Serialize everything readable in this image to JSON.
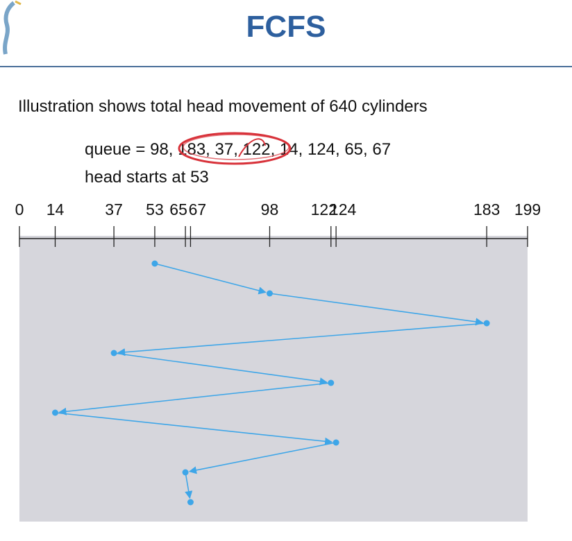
{
  "slide": {
    "title": "FCFS",
    "caption": "Illustration shows total head movement of 640 cylinders",
    "queue_label": "queue = 98, 183, 37, 122, 14, 124, 65, 67",
    "head_label": "head starts at 53"
  },
  "chart_data": {
    "type": "line",
    "title": "",
    "x_ticks": [
      0,
      14,
      37,
      53,
      65,
      67,
      98,
      122,
      124,
      183,
      199
    ],
    "x_tick_labels": [
      "0",
      "14",
      "37",
      "53",
      "65",
      "67",
      "98",
      "122",
      "124",
      "183",
      "199"
    ],
    "xlim": [
      0,
      199
    ],
    "sequence": [
      53,
      98,
      183,
      37,
      122,
      14,
      124,
      65,
      67
    ],
    "plot_background": "#d6d6dc",
    "line_color": "#3ea6e8"
  },
  "colors": {
    "title": "#2d5f9e",
    "rule": "#4a6f9a",
    "annotation": "#d8323a"
  }
}
